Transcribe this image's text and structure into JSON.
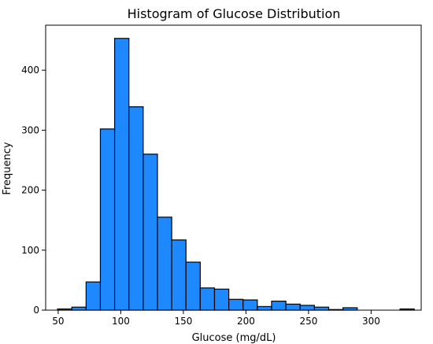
{
  "chart_data": {
    "type": "histogram",
    "title": "Histogram of Glucose Distribution",
    "xlabel": "Glucose (mg/dL)",
    "ylabel": "Frequency",
    "xlim": [
      40,
      340
    ],
    "ylim": [
      0,
      475
    ],
    "xticks": [
      50,
      100,
      150,
      200,
      250,
      300
    ],
    "yticks": [
      0,
      100,
      200,
      300,
      400
    ],
    "grid": false,
    "bar_color": "#1e88ff",
    "edge_color": "#000000",
    "bins": [
      {
        "x0": 49.5,
        "x1": 60.9,
        "count": 2
      },
      {
        "x0": 60.9,
        "x1": 72.3,
        "count": 5
      },
      {
        "x0": 72.3,
        "x1": 83.7,
        "count": 47
      },
      {
        "x0": 83.7,
        "x1": 95.1,
        "count": 302
      },
      {
        "x0": 95.1,
        "x1": 106.5,
        "count": 453
      },
      {
        "x0": 106.5,
        "x1": 117.9,
        "count": 339
      },
      {
        "x0": 117.9,
        "x1": 129.3,
        "count": 260
      },
      {
        "x0": 129.3,
        "x1": 140.7,
        "count": 155
      },
      {
        "x0": 140.7,
        "x1": 152.1,
        "count": 117
      },
      {
        "x0": 152.1,
        "x1": 163.5,
        "count": 80
      },
      {
        "x0": 163.5,
        "x1": 174.9,
        "count": 37
      },
      {
        "x0": 174.9,
        "x1": 186.3,
        "count": 35
      },
      {
        "x0": 186.3,
        "x1": 197.7,
        "count": 18
      },
      {
        "x0": 197.7,
        "x1": 209.1,
        "count": 17
      },
      {
        "x0": 209.1,
        "x1": 220.5,
        "count": 6
      },
      {
        "x0": 220.5,
        "x1": 231.9,
        "count": 15
      },
      {
        "x0": 231.9,
        "x1": 243.3,
        "count": 10
      },
      {
        "x0": 243.3,
        "x1": 254.7,
        "count": 8
      },
      {
        "x0": 254.7,
        "x1": 266.1,
        "count": 5
      },
      {
        "x0": 266.1,
        "x1": 277.5,
        "count": 1
      },
      {
        "x0": 277.5,
        "x1": 288.9,
        "count": 4
      },
      {
        "x0": 288.9,
        "x1": 300.3,
        "count": 0
      },
      {
        "x0": 300.3,
        "x1": 311.7,
        "count": 0
      },
      {
        "x0": 311.7,
        "x1": 323.1,
        "count": 0
      },
      {
        "x0": 323.1,
        "x1": 334.5,
        "count": 2
      }
    ]
  }
}
